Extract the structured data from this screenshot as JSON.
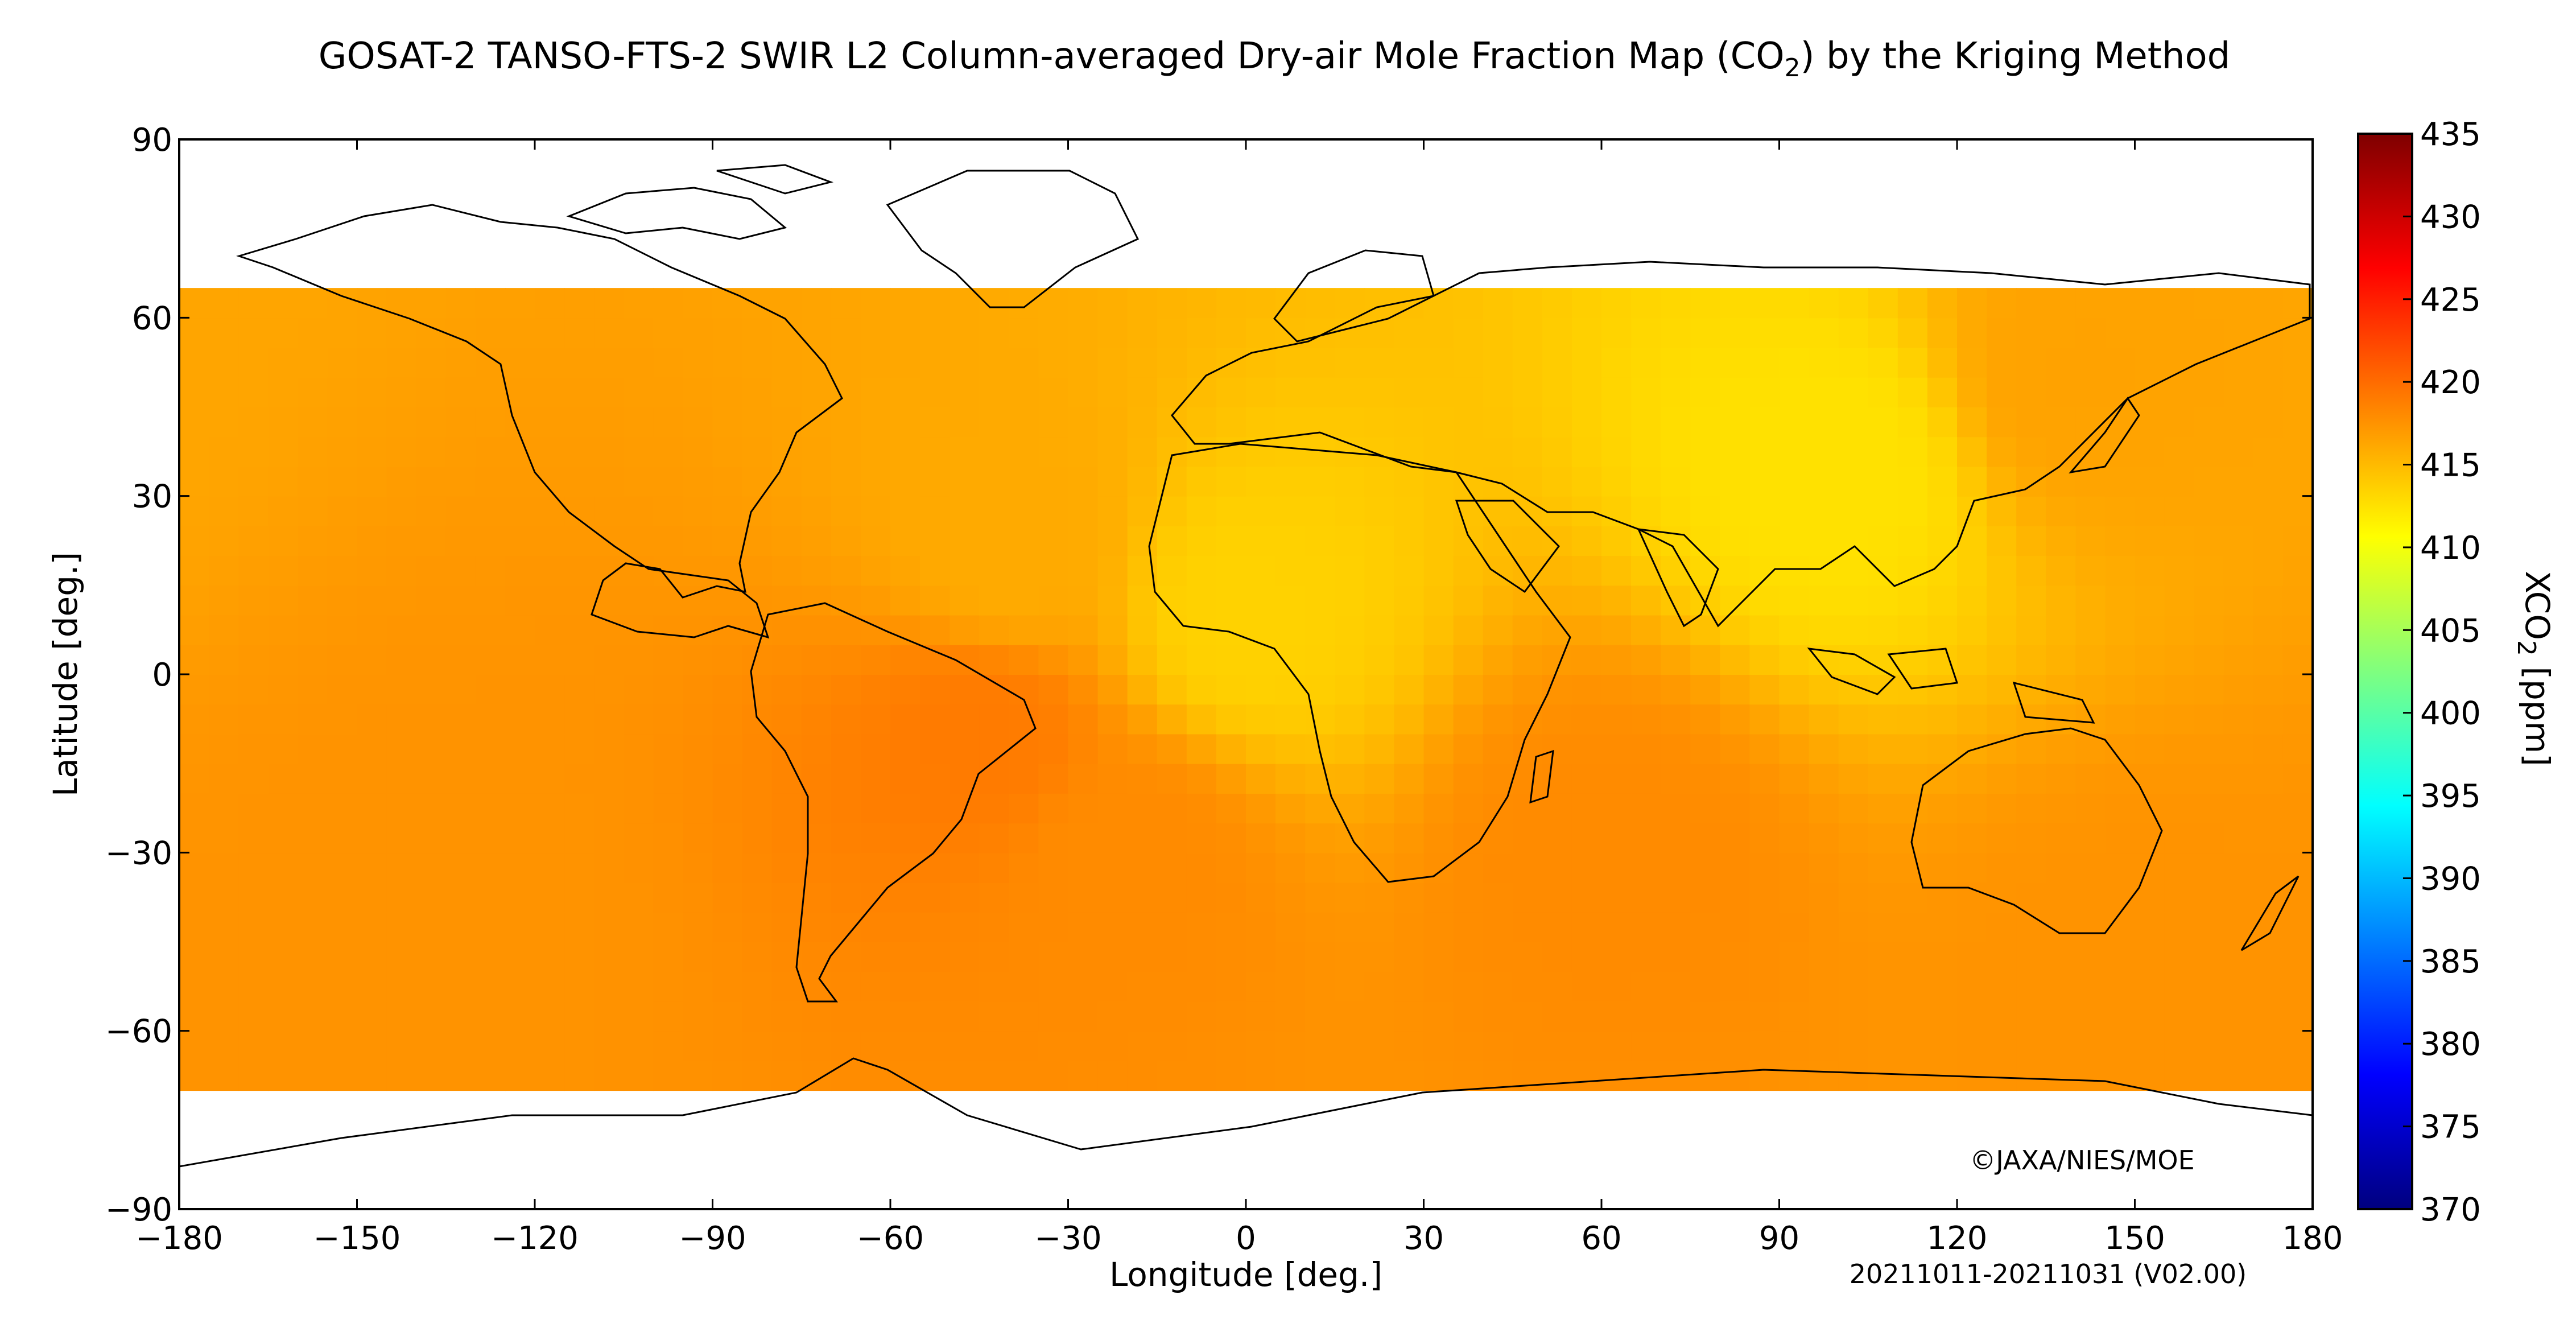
{
  "chart_data": {
    "type": "heatmap",
    "title": "GOSAT-2 TANSO-FTS-2 SWIR L2 Column-averaged Dry-air Mole Fraction Map (CO",
    "title_subscript": "2",
    "title_suffix": ") by the Kriging Method",
    "xlabel": "Longitude [deg.]",
    "ylabel": "Latitude [deg.]",
    "xlim": [
      -180,
      180
    ],
    "ylim": [
      -90,
      90
    ],
    "x_ticks": [
      "−180",
      "−150",
      "−120",
      "−90",
      "−60",
      "−30",
      "0",
      "30",
      "60",
      "90",
      "120",
      "150",
      "180"
    ],
    "y_ticks": [
      "90",
      "60",
      "30",
      "0",
      "−30",
      "−60",
      "−90"
    ],
    "colorbar": {
      "label": "XCO",
      "label_subscript": "2",
      "label_suffix": " [ppm]",
      "min": 370,
      "max": 435,
      "ticks": [
        "435",
        "430",
        "425",
        "420",
        "415",
        "410",
        "405",
        "400",
        "395",
        "390",
        "385",
        "380",
        "375",
        "370"
      ],
      "colormap": [
        "#00007f",
        "#0000ff",
        "#007fff",
        "#00ffff",
        "#7fff7f",
        "#ffff00",
        "#ff7f00",
        "#ff0000",
        "#7f0000"
      ]
    },
    "grid": false,
    "valid_lat_range": [
      -70,
      62
    ],
    "regional_xco2_ppm": [
      {
        "lon": -40,
        "lat": 20,
        "value": 416.0
      },
      {
        "lon": 0,
        "lat": 10,
        "value": 413.5
      },
      {
        "lon": 100,
        "lat": 35,
        "value": 412.5
      },
      {
        "lon": -45,
        "lat": -10,
        "value": 419.0
      },
      {
        "lon": -20,
        "lat": -30,
        "value": 418.0
      },
      {
        "lon": 60,
        "lat": -30,
        "value": 418.0
      },
      {
        "lon": -140,
        "lat": -40,
        "value": 417.5
      },
      {
        "lon": 140,
        "lat": 50,
        "value": 416.5
      },
      {
        "lon": 150,
        "lat": -50,
        "value": 417.5
      }
    ]
  },
  "copyright": "©JAXA/NIES/MOE",
  "period": "20211011-20211031 (V02.00)"
}
